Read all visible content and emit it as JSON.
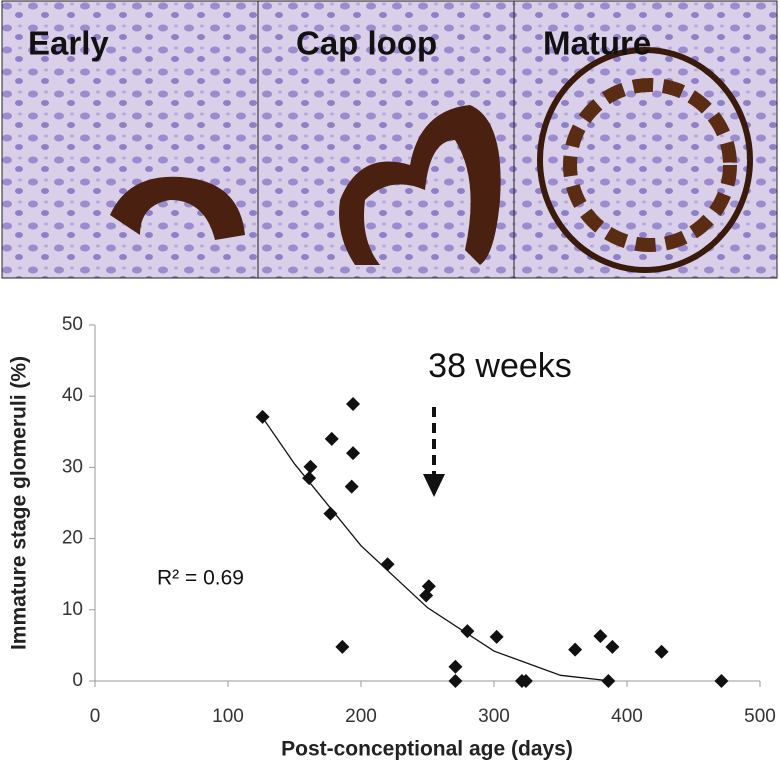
{
  "panel_labels": [
    "Early",
    "Cap loop",
    "Mature"
  ],
  "chart_data": {
    "type": "scatter",
    "x_label": "Post-conceptional age (days)",
    "y_label": "Immature stage glomeruli (%)",
    "annotations": [
      "38 weeks",
      "R² = 0.69"
    ],
    "xlim": [
      0,
      500
    ],
    "xticks": [
      0,
      100,
      200,
      300,
      400,
      500
    ],
    "ylim": [
      0,
      50
    ],
    "yticks": [
      0,
      10,
      20,
      30,
      40,
      50
    ],
    "color": "#111111",
    "x": [
      126,
      162,
      161,
      178,
      194,
      194,
      193,
      177,
      186,
      220,
      251,
      249,
      280,
      302,
      271,
      271,
      321,
      324,
      361,
      380,
      389,
      426,
      386,
      471
    ],
    "values": [
      37.1,
      30.1,
      28.5,
      34,
      38.9,
      32,
      27.3,
      23.5,
      4.8,
      16.4,
      13.3,
      12,
      7,
      6.2,
      2,
      0,
      0,
      0,
      4.4,
      6.3,
      4.8,
      4.1,
      0,
      0
    ],
    "trendline": {
      "x": [
        126,
        150,
        200,
        250,
        300,
        350,
        388
      ],
      "values": [
        37,
        30.5,
        19,
        10.3,
        4.2,
        0.8,
        0
      ]
    }
  }
}
